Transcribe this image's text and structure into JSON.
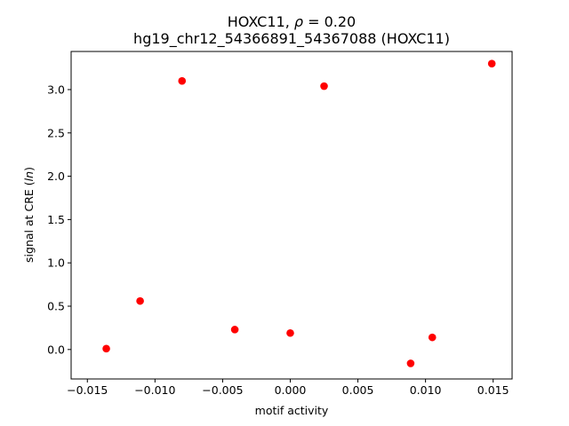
{
  "chart_data": {
    "type": "scatter",
    "title_line1_prefix": "HOXC11, ",
    "title_line1_rho": "ρ",
    "title_line1_suffix": " = 0.20",
    "title_line2": "hg19_chr12_54366891_54367088 (HOXC11)",
    "xlabel": "motif activity",
    "ylabel_prefix": "signal at CRE (",
    "ylabel_italic": "ln",
    "ylabel_suffix": ")",
    "xlim": [
      -0.0162,
      0.0164
    ],
    "ylim": [
      -0.34,
      3.44
    ],
    "xticks": [
      -0.015,
      -0.01,
      -0.005,
      0.0,
      0.005,
      0.01,
      0.015
    ],
    "xtick_labels": [
      "−0.015",
      "−0.010",
      "−0.005",
      "0.000",
      "0.005",
      "0.010",
      "0.015"
    ],
    "yticks": [
      0.0,
      0.5,
      1.0,
      1.5,
      2.0,
      2.5,
      3.0
    ],
    "ytick_labels": [
      "0.0",
      "0.5",
      "1.0",
      "1.5",
      "2.0",
      "2.5",
      "3.0"
    ],
    "marker_color": "#ff0000",
    "grid": false,
    "points": [
      {
        "x": -0.0136,
        "y": 0.01
      },
      {
        "x": -0.0111,
        "y": 0.56
      },
      {
        "x": -0.008,
        "y": 3.1
      },
      {
        "x": -0.0041,
        "y": 0.23
      },
      {
        "x": 0.0,
        "y": 0.19
      },
      {
        "x": 0.0025,
        "y": 3.04
      },
      {
        "x": 0.0089,
        "y": -0.16
      },
      {
        "x": 0.0105,
        "y": 0.14
      },
      {
        "x": 0.0149,
        "y": 3.3
      }
    ]
  }
}
